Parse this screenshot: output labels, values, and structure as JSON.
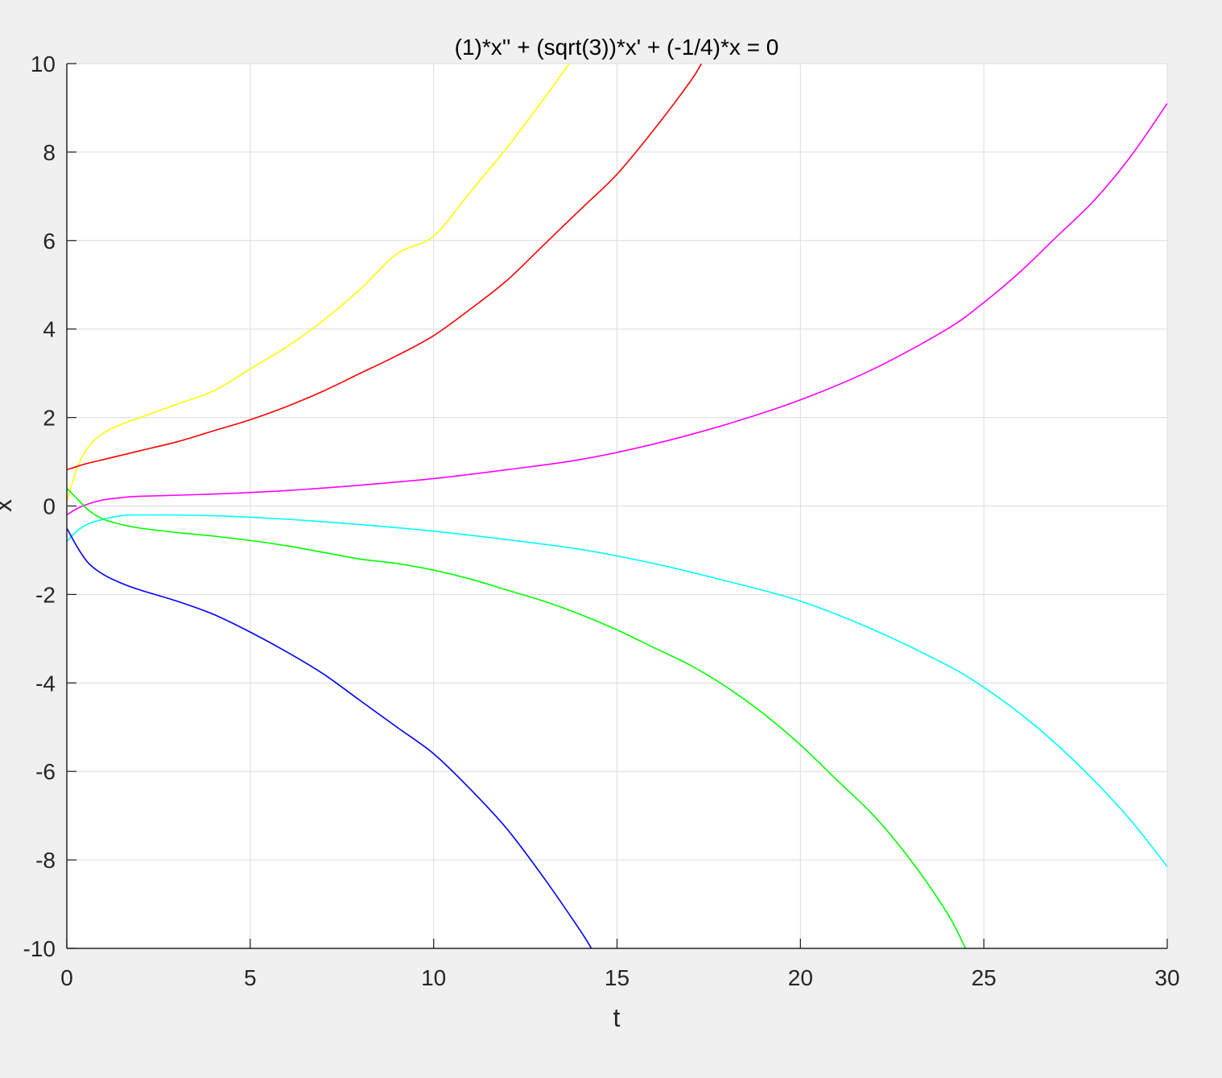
{
  "chart_data": {
    "type": "line",
    "title": "(1)*x'' + (sqrt(3))*x' + (-1/4)*x = 0",
    "xlabel": "t",
    "ylabel": "x",
    "xlim": [
      0,
      30
    ],
    "ylim": [
      -10,
      10
    ],
    "xticks": [
      "0",
      "5",
      "10",
      "15",
      "20",
      "25",
      "30"
    ],
    "yticks": [
      "-10",
      "-8",
      "-6",
      "-4",
      "-2",
      "0",
      "2",
      "4",
      "6",
      "8",
      "10"
    ],
    "grid": true,
    "colors": {
      "background": "#f0f0f0",
      "plot_area": "#ffffff",
      "grid": "#dcdcdc",
      "axis": "#262626"
    },
    "series": [
      {
        "color": "#ffff00",
        "points": [
          [
            0,
            0.1
          ],
          [
            0.3,
            0.9
          ],
          [
            0.6,
            1.35
          ],
          [
            1,
            1.65
          ],
          [
            1.5,
            1.85
          ],
          [
            2,
            2.0
          ],
          [
            3,
            2.3
          ],
          [
            4,
            2.6
          ],
          [
            5,
            3.1
          ],
          [
            6,
            3.6
          ],
          [
            7,
            4.2
          ],
          [
            8,
            4.9
          ],
          [
            9,
            5.7
          ],
          [
            10,
            6.1
          ],
          [
            11,
            7.1
          ],
          [
            12,
            8.1
          ],
          [
            13,
            9.2
          ],
          [
            13.7,
            10.0
          ]
        ]
      },
      {
        "color": "#ff0000",
        "points": [
          [
            0,
            0.82
          ],
          [
            0.5,
            0.95
          ],
          [
            1,
            1.05
          ],
          [
            2,
            1.25
          ],
          [
            3,
            1.45
          ],
          [
            4,
            1.7
          ],
          [
            5,
            1.95
          ],
          [
            6,
            2.25
          ],
          [
            7,
            2.6
          ],
          [
            8,
            3.0
          ],
          [
            9,
            3.4
          ],
          [
            10,
            3.85
          ],
          [
            11,
            4.45
          ],
          [
            12,
            5.1
          ],
          [
            13,
            5.9
          ],
          [
            14,
            6.7
          ],
          [
            15,
            7.5
          ],
          [
            16,
            8.5
          ],
          [
            17,
            9.6
          ],
          [
            17.3,
            10.0
          ]
        ]
      },
      {
        "color": "#ff00ff",
        "points": [
          [
            0,
            -0.2
          ],
          [
            0.3,
            -0.05
          ],
          [
            0.6,
            0.05
          ],
          [
            1,
            0.14
          ],
          [
            1.5,
            0.19
          ],
          [
            2,
            0.22
          ],
          [
            4,
            0.27
          ],
          [
            6,
            0.35
          ],
          [
            8,
            0.47
          ],
          [
            10,
            0.62
          ],
          [
            12,
            0.82
          ],
          [
            14,
            1.05
          ],
          [
            16,
            1.4
          ],
          [
            18,
            1.85
          ],
          [
            20,
            2.4
          ],
          [
            22,
            3.1
          ],
          [
            24,
            4.0
          ],
          [
            25,
            4.6
          ],
          [
            26,
            5.3
          ],
          [
            27,
            6.1
          ],
          [
            28,
            6.9
          ],
          [
            29,
            7.9
          ],
          [
            30,
            9.1
          ]
        ]
      },
      {
        "color": "#00ffff",
        "points": [
          [
            0,
            -0.8
          ],
          [
            0.3,
            -0.55
          ],
          [
            0.6,
            -0.4
          ],
          [
            1,
            -0.3
          ],
          [
            1.5,
            -0.22
          ],
          [
            2,
            -0.2
          ],
          [
            4,
            -0.22
          ],
          [
            6,
            -0.3
          ],
          [
            8,
            -0.42
          ],
          [
            10,
            -0.57
          ],
          [
            12,
            -0.76
          ],
          [
            14,
            -0.98
          ],
          [
            16,
            -1.3
          ],
          [
            18,
            -1.7
          ],
          [
            20,
            -2.15
          ],
          [
            22,
            -2.8
          ],
          [
            24,
            -3.6
          ],
          [
            25,
            -4.1
          ],
          [
            26,
            -4.7
          ],
          [
            27,
            -5.4
          ],
          [
            28,
            -6.2
          ],
          [
            29,
            -7.1
          ],
          [
            30,
            -8.15
          ]
        ]
      },
      {
        "color": "#00ff00",
        "points": [
          [
            0,
            0.4
          ],
          [
            0.3,
            0.15
          ],
          [
            0.6,
            -0.1
          ],
          [
            1,
            -0.3
          ],
          [
            1.5,
            -0.42
          ],
          [
            2,
            -0.5
          ],
          [
            3,
            -0.6
          ],
          [
            4,
            -0.68
          ],
          [
            5,
            -0.78
          ],
          [
            6,
            -0.9
          ],
          [
            7,
            -1.05
          ],
          [
            8,
            -1.2
          ],
          [
            9,
            -1.3
          ],
          [
            10,
            -1.45
          ],
          [
            11,
            -1.65
          ],
          [
            12,
            -1.9
          ],
          [
            13,
            -2.15
          ],
          [
            14,
            -2.45
          ],
          [
            15,
            -2.8
          ],
          [
            16,
            -3.2
          ],
          [
            17,
            -3.6
          ],
          [
            18,
            -4.1
          ],
          [
            19,
            -4.7
          ],
          [
            20,
            -5.4
          ],
          [
            21,
            -6.2
          ],
          [
            22,
            -7.0
          ],
          [
            23,
            -8.0
          ],
          [
            24,
            -9.2
          ],
          [
            24.5,
            -10.0
          ]
        ]
      },
      {
        "color": "#0000ff",
        "points": [
          [
            0,
            -0.5
          ],
          [
            0.3,
            -0.95
          ],
          [
            0.6,
            -1.3
          ],
          [
            1,
            -1.55
          ],
          [
            1.5,
            -1.75
          ],
          [
            2,
            -1.9
          ],
          [
            3,
            -2.15
          ],
          [
            4,
            -2.45
          ],
          [
            5,
            -2.85
          ],
          [
            6,
            -3.3
          ],
          [
            7,
            -3.8
          ],
          [
            8,
            -4.4
          ],
          [
            9,
            -5.0
          ],
          [
            10,
            -5.6
          ],
          [
            11,
            -6.4
          ],
          [
            12,
            -7.3
          ],
          [
            13,
            -8.4
          ],
          [
            14,
            -9.6
          ],
          [
            14.3,
            -10.0
          ]
        ]
      }
    ]
  }
}
